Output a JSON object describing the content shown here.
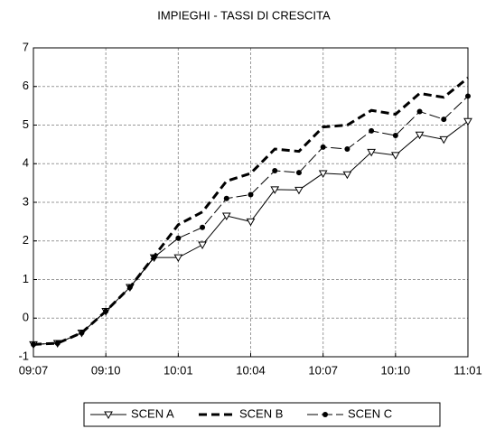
{
  "chart_data": {
    "type": "line",
    "title": "IMPIEGHI - TASSI DI CRESCITA",
    "categories": [
      "09:07",
      null,
      null,
      "09:10",
      null,
      null,
      "10:01",
      null,
      null,
      "10:04",
      null,
      null,
      "10:07",
      null,
      null,
      "10:10",
      null,
      null,
      "11:01"
    ],
    "series": [
      {
        "name": "SCEN A",
        "color": "#000000",
        "dash": "none",
        "width": 1,
        "marker": "triangle",
        "values": [
          -0.68,
          -0.65,
          -0.38,
          0.18,
          0.8,
          1.57,
          1.57,
          1.9,
          2.65,
          2.5,
          3.33,
          3.32,
          3.75,
          3.72,
          4.3,
          4.22,
          4.75,
          4.63,
          5.1
        ]
      },
      {
        "name": "SCEN B",
        "color": "#000000",
        "dash": "9 5",
        "width": 3,
        "marker": "none",
        "values": [
          -0.68,
          -0.65,
          -0.38,
          0.18,
          0.8,
          1.6,
          2.42,
          2.75,
          3.55,
          3.75,
          4.38,
          4.32,
          4.95,
          5.0,
          5.38,
          5.28,
          5.82,
          5.72,
          6.22
        ]
      },
      {
        "name": "SCEN C",
        "color": "#000000",
        "dash": "12 4",
        "width": 1,
        "marker": "circle",
        "values": [
          -0.68,
          -0.65,
          -0.38,
          0.18,
          0.8,
          1.58,
          2.07,
          2.35,
          3.1,
          3.2,
          3.82,
          3.77,
          4.43,
          4.38,
          4.85,
          4.73,
          5.35,
          5.15,
          5.75
        ]
      }
    ],
    "ylim": [
      -1,
      7
    ],
    "yticks": [
      -1,
      0,
      1,
      2,
      3,
      4,
      5,
      6,
      7
    ],
    "grid": true,
    "legend": "bottom"
  }
}
